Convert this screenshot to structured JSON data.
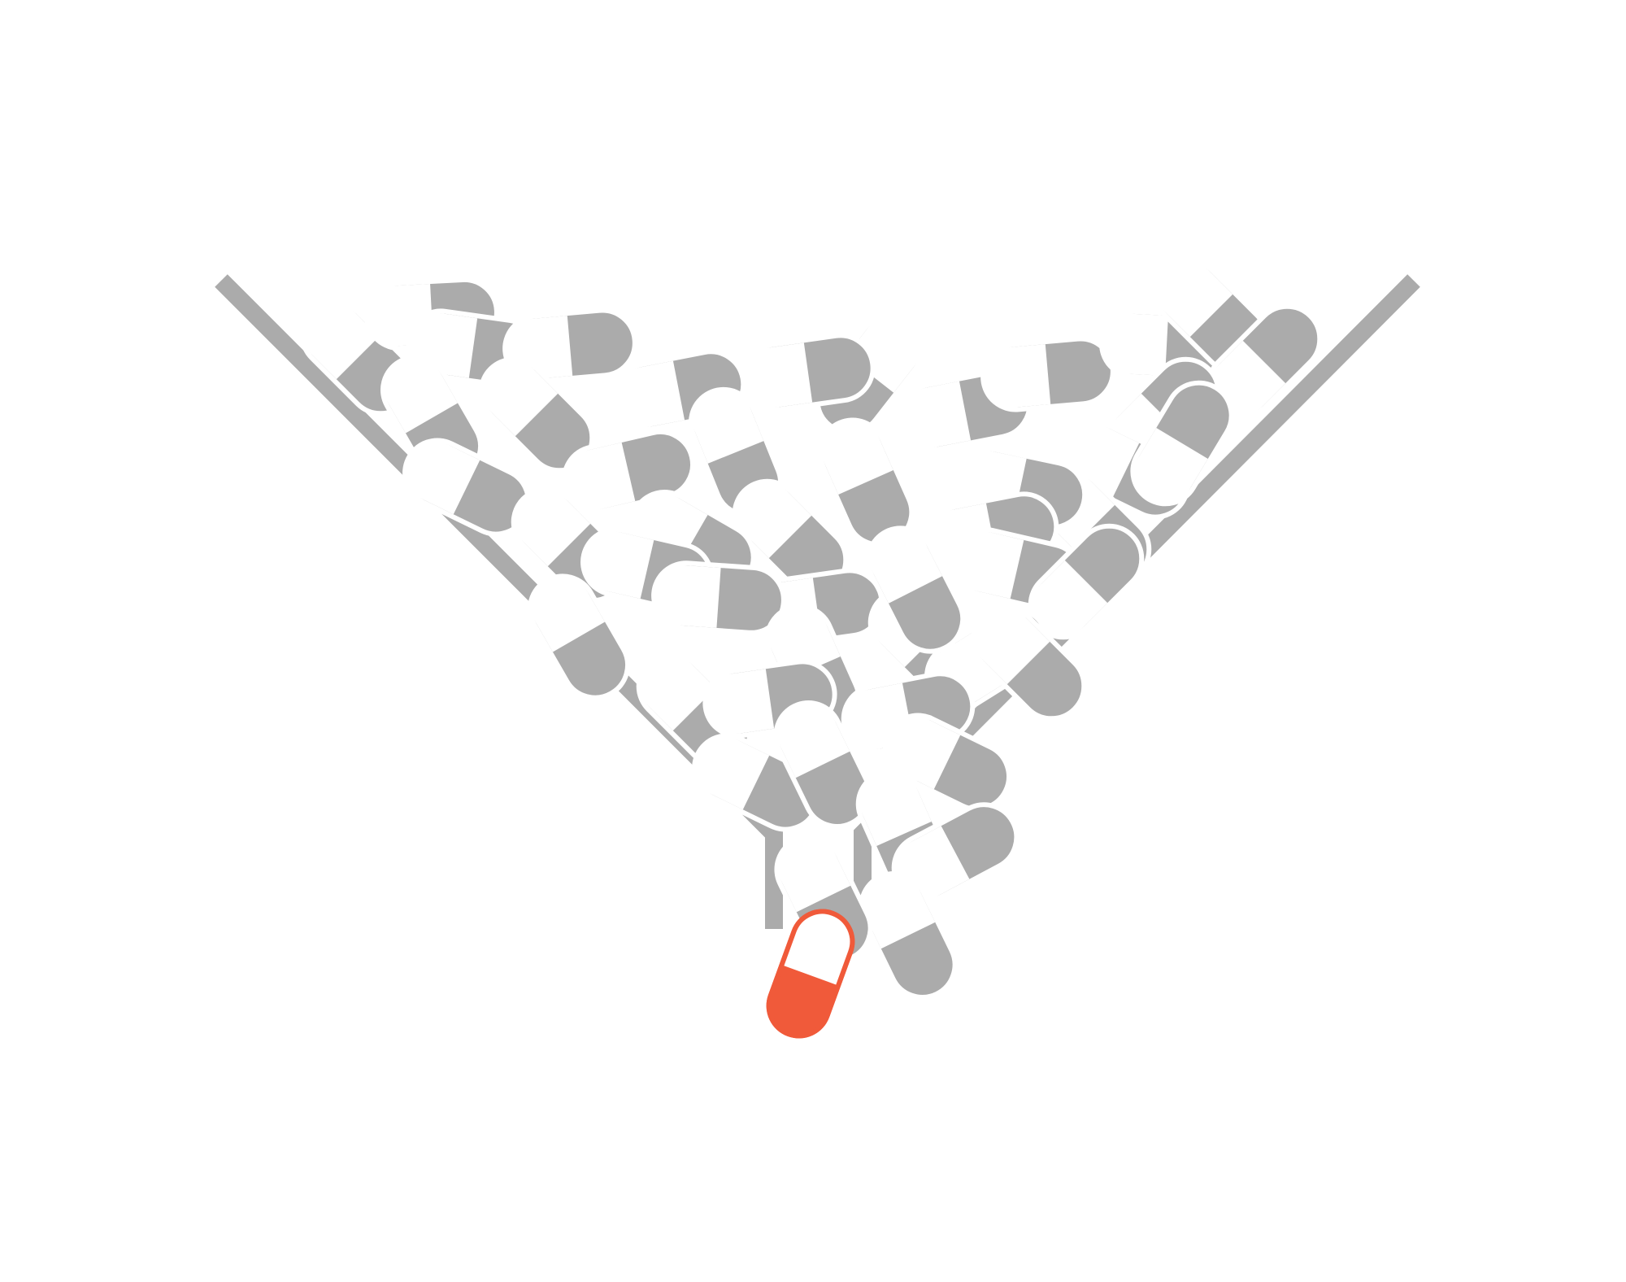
{
  "illustration": {
    "subject": "capsules-in-funnel",
    "colors": {
      "background": "#ffffff",
      "capsule_gray": "#ababab",
      "capsule_white": "#ffffff",
      "highlight": "#f05a3a"
    },
    "icons": [
      "funnel-icon",
      "capsule-icon",
      "highlighted-capsule-icon"
    ],
    "capsule_count_in_funnel": 48,
    "highlighted_capsule_count": 1
  }
}
